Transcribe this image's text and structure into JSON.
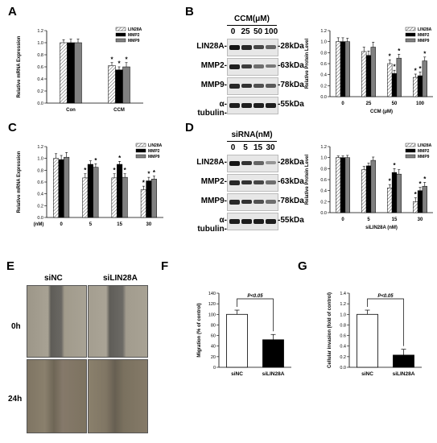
{
  "panels": {
    "A": "A",
    "B": "B",
    "C": "C",
    "D": "D",
    "E": "E",
    "F": "F",
    "G": "G"
  },
  "chart_data": [
    {
      "id": "A",
      "type": "bar",
      "categories": [
        "Con",
        "CCM"
      ],
      "series": [
        {
          "name": "LIN28A",
          "values": [
            1.0,
            0.62
          ],
          "err": [
            0.05,
            0.05
          ]
        },
        {
          "name": "MMP2",
          "values": [
            1.0,
            0.55
          ],
          "err": [
            0.06,
            0.05
          ]
        },
        {
          "name": "MMP9",
          "values": [
            1.0,
            0.6
          ],
          "err": [
            0.06,
            0.07
          ]
        }
      ],
      "star": [
        [
          false,
          false,
          false
        ],
        [
          true,
          true,
          true
        ]
      ],
      "ylabel": "Relative mRNA Expression",
      "xlabel": "",
      "ylim": [
        0,
        1.2
      ],
      "yticks": [
        "0.0",
        "0.2",
        "0.4",
        "0.6",
        "0.8",
        "1.0",
        "1.2"
      ],
      "legend": "top-right",
      "xprefix": ""
    },
    {
      "id": "B",
      "type": "bar",
      "categories": [
        "0",
        "25",
        "50",
        "100"
      ],
      "series": [
        {
          "name": "LIN28A",
          "values": [
            1.0,
            0.82,
            0.6,
            0.35
          ],
          "err": [
            0.07,
            0.08,
            0.07,
            0.06
          ]
        },
        {
          "name": "MMP2",
          "values": [
            1.0,
            0.75,
            0.42,
            0.38
          ],
          "err": [
            0.07,
            0.08,
            0.06,
            0.07
          ]
        },
        {
          "name": "MMP9",
          "values": [
            1.0,
            0.9,
            0.7,
            0.65
          ],
          "err": [
            0.06,
            0.09,
            0.07,
            0.07
          ]
        }
      ],
      "star": [
        [
          false,
          false,
          false
        ],
        [
          false,
          false,
          false
        ],
        [
          true,
          true,
          true
        ],
        [
          true,
          true,
          true
        ]
      ],
      "ylabel": "Relative Protein Level",
      "xlabel": "CCM (μM)",
      "ylim": [
        0,
        1.2
      ],
      "yticks": [
        "0.0",
        "0.2",
        "0.4",
        "0.6",
        "0.8",
        "1.0",
        "1.2"
      ],
      "legend": "top-right",
      "xprefix": ""
    },
    {
      "id": "C",
      "type": "bar",
      "categories": [
        "0",
        "5",
        "15",
        "30"
      ],
      "series": [
        {
          "name": "LIN28A",
          "values": [
            1.0,
            0.67,
            0.67,
            0.47
          ],
          "err": [
            0.08,
            0.07,
            0.07,
            0.06
          ]
        },
        {
          "name": "MMP2",
          "values": [
            0.98,
            0.9,
            0.9,
            0.62
          ],
          "err": [
            0.07,
            0.06,
            0.05,
            0.06
          ]
        },
        {
          "name": "MMP9",
          "values": [
            1.02,
            0.85,
            0.68,
            0.65
          ],
          "err": [
            0.08,
            0.06,
            0.06,
            0.05
          ]
        }
      ],
      "star": [
        [
          false,
          false,
          false
        ],
        [
          true,
          false,
          true
        ],
        [
          true,
          true,
          true
        ],
        [
          true,
          true,
          true
        ]
      ],
      "ylabel": "Relative mRNA Expression",
      "xlabel": "",
      "ylim": [
        0,
        1.2
      ],
      "yticks": [
        "0.0",
        "0.2",
        "0.4",
        "0.6",
        "0.8",
        "1.0",
        "1.2"
      ],
      "legend": "top-right",
      "xprefix": "(nM)"
    },
    {
      "id": "D",
      "type": "bar",
      "categories": [
        "0",
        "5",
        "15",
        "30"
      ],
      "series": [
        {
          "name": "LIN28A",
          "values": [
            1.0,
            0.78,
            0.45,
            0.2
          ],
          "err": [
            0.03,
            0.06,
            0.06,
            0.07
          ]
        },
        {
          "name": "MMP2",
          "values": [
            1.0,
            0.85,
            0.73,
            0.4
          ],
          "err": [
            0.03,
            0.05,
            0.07,
            0.06
          ]
        },
        {
          "name": "MMP9",
          "values": [
            1.0,
            0.95,
            0.7,
            0.48
          ],
          "err": [
            0.04,
            0.06,
            0.08,
            0.07
          ]
        }
      ],
      "star": [
        [
          false,
          false,
          false
        ],
        [
          false,
          false,
          false
        ],
        [
          true,
          true,
          false
        ],
        [
          true,
          true,
          true
        ]
      ],
      "ylabel": "Relative Protein Level",
      "xlabel": "siLIN28A (nM)",
      "ylim": [
        0,
        1.2
      ],
      "yticks": [
        "0.0",
        "0.2",
        "0.4",
        "0.6",
        "0.8",
        "1.0",
        "1.2"
      ],
      "legend": "top-right",
      "xprefix": ""
    },
    {
      "id": "F",
      "type": "bar",
      "categories": [
        "siNC",
        "siLIN28A"
      ],
      "series": [
        {
          "name": "",
          "values": [
            100,
            52
          ],
          "err": [
            8,
            10
          ]
        }
      ],
      "ylabel": "Migration (% of control)",
      "xlabel": "",
      "ylim": [
        0,
        140
      ],
      "yticks": [
        "0",
        "20",
        "40",
        "60",
        "80",
        "100",
        "120",
        "140"
      ],
      "annotation": "P<0.05"
    },
    {
      "id": "G",
      "type": "bar",
      "categories": [
        "siNC",
        "siLIN28A"
      ],
      "series": [
        {
          "name": "",
          "values": [
            1.0,
            0.23
          ],
          "err": [
            0.08,
            0.11
          ]
        }
      ],
      "ylabel": "Cellular invasion (fold of control)",
      "xlabel": "",
      "ylim": [
        0,
        1.4
      ],
      "yticks": [
        "0.0",
        "0.2",
        "0.4",
        "0.6",
        "0.8",
        "1.0",
        "1.2",
        "1.4"
      ],
      "annotation": "P<0.05"
    }
  ],
  "blots": {
    "B": {
      "header": "CCM(μM)",
      "lanes": [
        "0",
        "25",
        "50",
        "100"
      ],
      "rows": [
        {
          "label": "LIN28A-",
          "kda": "-28kDa",
          "intensity": [
            0.95,
            0.85,
            0.7,
            0.55
          ]
        },
        {
          "label": "MMP2-",
          "kda": "-63kDa",
          "intensity": [
            0.9,
            0.75,
            0.5,
            0.45
          ]
        },
        {
          "label": "MMP9-",
          "kda": "-78kDa",
          "intensity": [
            0.85,
            0.8,
            0.65,
            0.6
          ]
        },
        {
          "label": "α-tubulin-",
          "kda": "-55kDa",
          "intensity": [
            0.9,
            0.9,
            0.9,
            0.9
          ]
        }
      ]
    },
    "D": {
      "header": "siRNA(nM)",
      "lanes": [
        "0",
        "5",
        "15",
        "30"
      ],
      "rows": [
        {
          "label": "LIN28A-",
          "kda": "-28kDa",
          "intensity": [
            0.95,
            0.8,
            0.55,
            0.3
          ]
        },
        {
          "label": "MMP2-",
          "kda": "-63kDa",
          "intensity": [
            0.85,
            0.8,
            0.7,
            0.5
          ]
        },
        {
          "label": "MMP9-",
          "kda": "-78kDa",
          "intensity": [
            0.85,
            0.8,
            0.65,
            0.5
          ]
        },
        {
          "label": "α-tubulin-",
          "kda": "-55kDa",
          "intensity": [
            0.9,
            0.9,
            0.9,
            0.9
          ]
        }
      ]
    }
  },
  "scratch": {
    "cols": [
      "siNC",
      "siLIN28A"
    ],
    "rows": [
      "0h",
      "24h"
    ]
  },
  "colors": {
    "lin28a": "hatched",
    "mmp2": "#000000",
    "mmp9": "#808080",
    "white_bar": "#ffffff",
    "black_bar": "#000000"
  }
}
